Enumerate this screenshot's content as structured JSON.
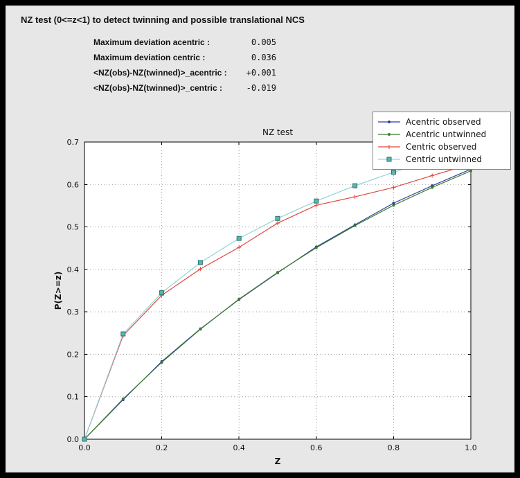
{
  "window": {
    "title": "NZ test (0<=z<1) to detect twinning and possible translational NCS"
  },
  "stats": [
    {
      "label": "Maximum deviation acentric :",
      "value": "0.005"
    },
    {
      "label": "Maximum deviation centric :",
      "value": "0.036"
    },
    {
      "label": "<NZ(obs)-NZ(twinned)>_acentric :",
      "value": "+0.001"
    },
    {
      "label": "<NZ(obs)-NZ(twinned)>_centric :",
      "value": "-0.019"
    }
  ],
  "chart_data": {
    "type": "line",
    "title": "NZ test",
    "xlabel": "Z",
    "ylabel": "P(Z>=z)",
    "xlim": [
      0,
      1
    ],
    "ylim": [
      0,
      0.7
    ],
    "xticks": [
      0.0,
      0.2,
      0.4,
      0.6,
      0.8,
      1.0
    ],
    "yticks": [
      0.0,
      0.1,
      0.2,
      0.3,
      0.4,
      0.5,
      0.6,
      0.7
    ],
    "grid": true,
    "grid_style": "dotted",
    "legend_position": "upper right",
    "colors": {
      "acentric_observed": "#2e3d96",
      "acentric_untwinned": "#3f7d32",
      "centric_observed": "#e0473f",
      "centric_untwinned": "#8fd6d4"
    },
    "x": [
      0.0,
      0.1,
      0.2,
      0.3,
      0.4,
      0.5,
      0.6,
      0.7,
      0.8,
      0.9,
      1.0
    ],
    "series": [
      {
        "name": "Acentric observed",
        "color": "#2e3d96",
        "marker": "dot",
        "values": [
          0.0,
          0.093,
          0.183,
          0.26,
          0.329,
          0.392,
          0.453,
          0.505,
          0.556,
          0.597,
          0.636
        ]
      },
      {
        "name": "Acentric untwinned",
        "color": "#3f7d32",
        "marker": "dot",
        "values": [
          0.0,
          0.095,
          0.181,
          0.259,
          0.33,
          0.393,
          0.451,
          0.503,
          0.551,
          0.593,
          0.632
        ]
      },
      {
        "name": "Centric observed",
        "color": "#e0473f",
        "marker": "plus",
        "values": [
          0.0,
          0.244,
          0.339,
          0.401,
          0.452,
          0.509,
          0.551,
          0.571,
          0.593,
          0.621,
          0.648
        ]
      },
      {
        "name": "Centric untwinned",
        "color": "#8fd6d4",
        "marker": "square",
        "marker_fill": "#56b7b1",
        "marker_stroke": "#2f6f6b",
        "values": [
          0.0,
          0.248,
          0.345,
          0.416,
          0.473,
          0.52,
          0.561,
          0.597,
          0.629,
          0.657,
          0.683
        ]
      }
    ]
  }
}
